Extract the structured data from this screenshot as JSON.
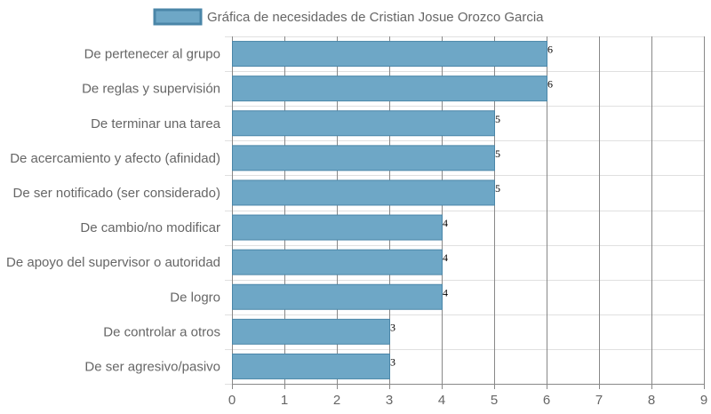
{
  "chart_data": {
    "type": "bar",
    "orientation": "horizontal",
    "categories": [
      "De pertenecer al grupo",
      "De reglas y supervisión",
      "De terminar una tarea",
      "De acercamiento y afecto (afinidad)",
      "De ser notificado (ser considerado)",
      "De cambio/no modificar",
      "De apoyo del supervisor o autoridad",
      "De logro",
      "De controlar a otros",
      "De ser agresivo/pasivo"
    ],
    "series": [
      {
        "name": "Gráfica de necesidades de Cristian Josue Orozco Garcia",
        "values": [
          6,
          6,
          5,
          5,
          5,
          4,
          4,
          4,
          3,
          3
        ]
      }
    ],
    "xlim": [
      0,
      9
    ],
    "x_ticks": [
      "0",
      "1",
      "2",
      "3",
      "4",
      "5",
      "6",
      "7",
      "8",
      "9"
    ],
    "grid": true,
    "legend_position": "top",
    "data_labels": true,
    "colors": {
      "bar_fill": "#6ea7c6",
      "bar_stroke": "#4a86a8",
      "grid": "#e0e0e0",
      "vertical_grid": "#888888",
      "axis": "#888888",
      "text": "#666666"
    }
  }
}
